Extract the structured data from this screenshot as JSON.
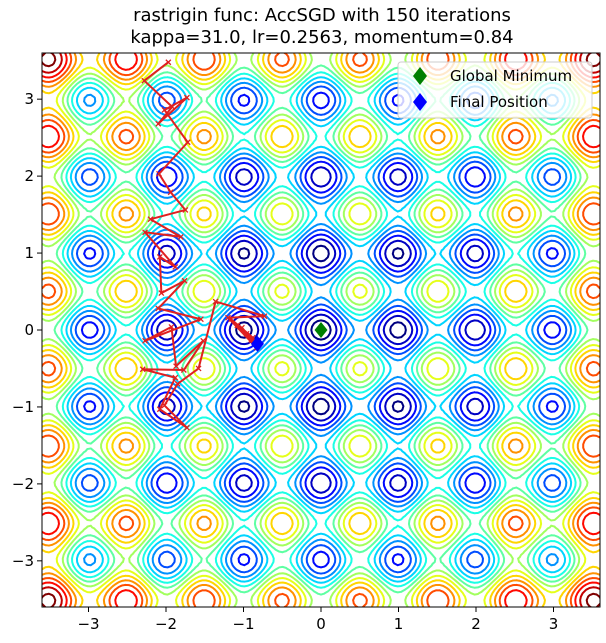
{
  "chart_data": {
    "type": "contour",
    "title_line1": "rastrigin func: AccSGD with 150 iterations",
    "title_line2": "kappa=31.0, lr=0.2563, momentum=0.84",
    "xlabel": "",
    "ylabel": "",
    "xlim": [
      -3.6,
      3.6
    ],
    "ylim": [
      -3.6,
      3.6
    ],
    "xticks": [
      -3,
      -2,
      -1,
      0,
      1,
      2,
      3
    ],
    "yticks": [
      -3,
      -2,
      -1,
      0,
      1,
      2,
      3
    ],
    "xtick_labels": [
      "−3",
      "−2",
      "−1",
      "0",
      "1",
      "2",
      "3"
    ],
    "ytick_labels": [
      "−3",
      "−2",
      "−1",
      "0",
      "1",
      "2",
      "3"
    ],
    "function": "rastrigin",
    "grid": false,
    "legend_position": "top-right",
    "legend": [
      {
        "label": "Global Minimum",
        "marker": "diamond",
        "color": "#008000"
      },
      {
        "label": "Final Position",
        "marker": "diamond",
        "color": "#0000ff"
      }
    ],
    "global_minimum": {
      "x": 0.0,
      "y": 0.0
    },
    "final_position": {
      "x": -0.82,
      "y": -0.18
    },
    "path_color": "#e02020",
    "path": [
      [
        -1.97,
        3.48
      ],
      [
        -2.28,
        3.24
      ],
      [
        -1.92,
        2.9
      ],
      [
        -2.1,
        2.68
      ],
      [
        -1.73,
        3.02
      ],
      [
        -2.02,
        2.86
      ],
      [
        -1.72,
        2.44
      ],
      [
        -2.09,
        2.03
      ],
      [
        -1.94,
        1.79
      ],
      [
        -1.75,
        1.56
      ],
      [
        -2.2,
        1.44
      ],
      [
        -1.81,
        1.21
      ],
      [
        -2.27,
        1.27
      ],
      [
        -1.88,
        0.82
      ],
      [
        -2.08,
        0.95
      ],
      [
        -2.06,
        0.48
      ],
      [
        -1.76,
        0.64
      ],
      [
        -2.1,
        0.28
      ],
      [
        -1.55,
        0.14
      ],
      [
        -2.27,
        -0.14
      ],
      [
        -1.93,
        0.04
      ],
      [
        -1.87,
        -0.47
      ],
      [
        -1.52,
        -0.14
      ],
      [
        -1.77,
        -0.52
      ],
      [
        -2.3,
        -0.51
      ],
      [
        -1.88,
        -0.62
      ],
      [
        -2.08,
        -1.03
      ],
      [
        -1.73,
        -1.27
      ],
      [
        -2.02,
        -0.98
      ],
      [
        -1.85,
        -0.7
      ],
      [
        -1.58,
        -0.5
      ],
      [
        -1.36,
        0.37
      ],
      [
        -0.73,
        0.18
      ],
      [
        -1.2,
        0.16
      ],
      [
        -0.83,
        -0.23
      ],
      [
        -1.16,
        0.14
      ],
      [
        -0.88,
        -0.1
      ],
      [
        -1.08,
        0.06
      ],
      [
        -0.9,
        -0.13
      ],
      [
        -1.02,
        0.03
      ],
      [
        -0.86,
        -0.16
      ],
      [
        -0.96,
        -0.05
      ],
      [
        -0.84,
        -0.17
      ],
      [
        -0.82,
        -0.18
      ]
    ]
  }
}
